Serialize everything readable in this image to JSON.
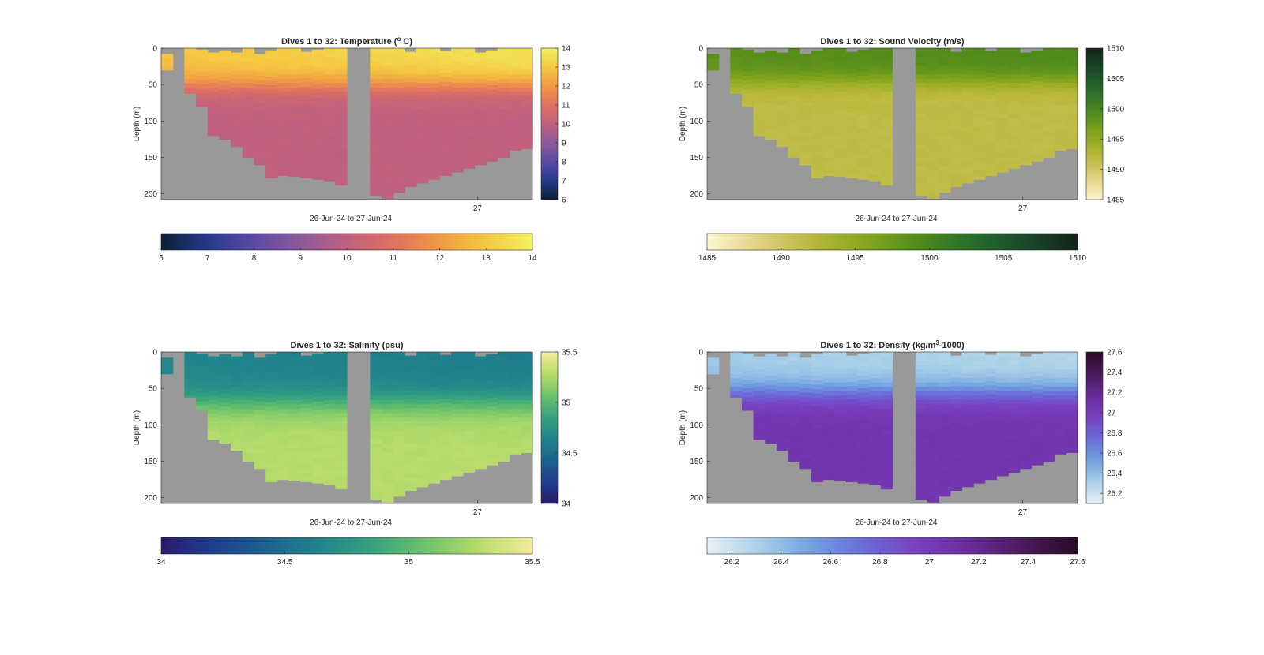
{
  "figure": {
    "background": "#ffffff"
  },
  "chart_data": [
    {
      "type": "heatmap",
      "variable": "temperature",
      "title": "Dives 1 to 32: Temperature (",
      "title_sup": "o",
      "title_suffix": " C)",
      "xlabel": "26-Jun-24 to 27-Jun-24",
      "ylabel": "Depth (m)",
      "x_ticks": [
        "27"
      ],
      "y_ticks": [
        "0",
        "50",
        "100",
        "150",
        "200"
      ],
      "ylim": [
        0,
        208
      ],
      "num_dives": 32,
      "clim": [
        6,
        14
      ],
      "colorbar_ticks": [
        "6",
        "7",
        "8",
        "9",
        "10",
        "11",
        "12",
        "13",
        "14"
      ],
      "colormap": [
        "#0b1f33",
        "#233a8e",
        "#5b4aa2",
        "#8c5a9c",
        "#c0607f",
        "#e07060",
        "#f09a45",
        "#f5c840",
        "#f1f25e"
      ],
      "nodata_color": "#999999",
      "profile": {
        "surface": 13.3,
        "thermocline_depth": 50,
        "thermocline_width": 30,
        "deep": 10.0,
        "trend": 0.7
      }
    },
    {
      "type": "heatmap",
      "variable": "sound_velocity",
      "title": "Dives 1 to 32: Sound Velocity (m/s)",
      "xlabel": "26-Jun-24 to 27-Jun-24",
      "ylabel": "Depth (m)",
      "x_ticks": [
        "27"
      ],
      "y_ticks": [
        "0",
        "50",
        "100",
        "150",
        "200"
      ],
      "ylim": [
        0,
        208
      ],
      "num_dives": 32,
      "clim": [
        1485,
        1510
      ],
      "colorbar_ticks": [
        "1485",
        "1490",
        "1495",
        "1500",
        "1505",
        "1510"
      ],
      "colormap": [
        "#fdf6d0",
        "#e0d080",
        "#b8b83a",
        "#86a61d",
        "#4f8b1b",
        "#276e2b",
        "#1a4a2b",
        "#122318"
      ],
      "nodata_color": "#999999",
      "profile": {
        "surface": 1499.0,
        "thermocline_depth": 45,
        "thermocline_width": 25,
        "deep": 1491.5,
        "trend": 0.8
      }
    },
    {
      "type": "heatmap",
      "variable": "salinity",
      "title": "Dives 1 to 32: Salinity (psu)",
      "xlabel": "26-Jun-24 to 27-Jun-24",
      "ylabel": "Depth (m)",
      "x_ticks": [
        "27"
      ],
      "y_ticks": [
        "0",
        "50",
        "100",
        "150",
        "200"
      ],
      "ylim": [
        0,
        208
      ],
      "num_dives": 32,
      "clim": [
        34,
        35.5
      ],
      "colorbar_ticks": [
        "34",
        "34.5",
        "35",
        "35.5"
      ],
      "colormap": [
        "#2a1a6e",
        "#1e3f8e",
        "#1d638f",
        "#21848c",
        "#36a27e",
        "#6ec36a",
        "#b8dc6b",
        "#f5ec9c"
      ],
      "nodata_color": "#999999",
      "profile": {
        "surface": 34.62,
        "thermocline_depth": 70,
        "thermocline_width": 35,
        "deep": 35.28,
        "trend": -0.05
      }
    },
    {
      "type": "heatmap",
      "variable": "density",
      "title": "Dives 1 to 32: Density (kg/m",
      "title_sup": "3",
      "title_suffix": "-1000)",
      "xlabel": "26-Jun-24 to 27-Jun-24",
      "ylabel": "Depth (m)",
      "x_ticks": [
        "27"
      ],
      "y_ticks": [
        "0",
        "50",
        "100",
        "150",
        "200"
      ],
      "ylim": [
        0,
        208
      ],
      "num_dives": 32,
      "clim": [
        26.1,
        27.6
      ],
      "colorbar_ticks": [
        "26.2",
        "26.4",
        "26.6",
        "26.8",
        "27",
        "27.2",
        "27.4",
        "27.6"
      ],
      "colormap": [
        "#e8f2f5",
        "#a9d0e8",
        "#6fa0e0",
        "#6a6ad8",
        "#7a3fc0",
        "#6a2a98",
        "#4a1a5a",
        "#2a0a28"
      ],
      "nodata_color": "#999999",
      "profile": {
        "surface": 26.3,
        "thermocline_depth": 55,
        "thermocline_width": 32,
        "deep": 27.05,
        "trend": -0.05
      }
    }
  ]
}
